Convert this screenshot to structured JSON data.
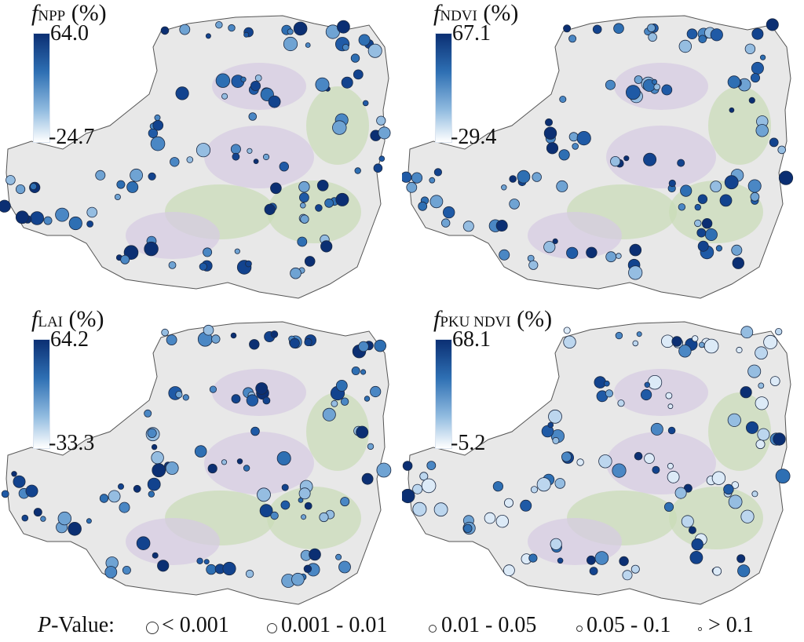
{
  "panels": [
    {
      "id": "npp",
      "title_var": "f",
      "title_sub": "NPP",
      "title_unit": "(%)",
      "cb_max": "64.0",
      "cb_min": "-24.7"
    },
    {
      "id": "ndvi",
      "title_var": "f",
      "title_sub": "NDVI",
      "title_unit": "(%)",
      "cb_max": "67.1",
      "cb_min": "-29.4"
    },
    {
      "id": "lai",
      "title_var": "f",
      "title_sub": "LAI",
      "title_unit": "(%)",
      "cb_max": "64.2",
      "cb_min": "-33.3"
    },
    {
      "id": "pku",
      "title_var": "f",
      "title_sub": "PKU NDVI",
      "title_unit": "(%)",
      "cb_max": "68.1",
      "cb_min": "-5.2"
    }
  ],
  "legend": {
    "title_var": "P",
    "title_rest": "-Value:",
    "items": [
      "< 0.001",
      "0.001 - 0.01",
      "0.01 - 0.05",
      "0.05 - 0.1",
      "> 0.1"
    ]
  },
  "colors": {
    "region_fill": "#e8e8e8",
    "region_stroke": "#555555",
    "veg_green": "#c9dcb7",
    "veg_purple": "#d6cbe3",
    "dark_blue": "#0b2f73",
    "light_blue": "#cfe2f3"
  }
}
